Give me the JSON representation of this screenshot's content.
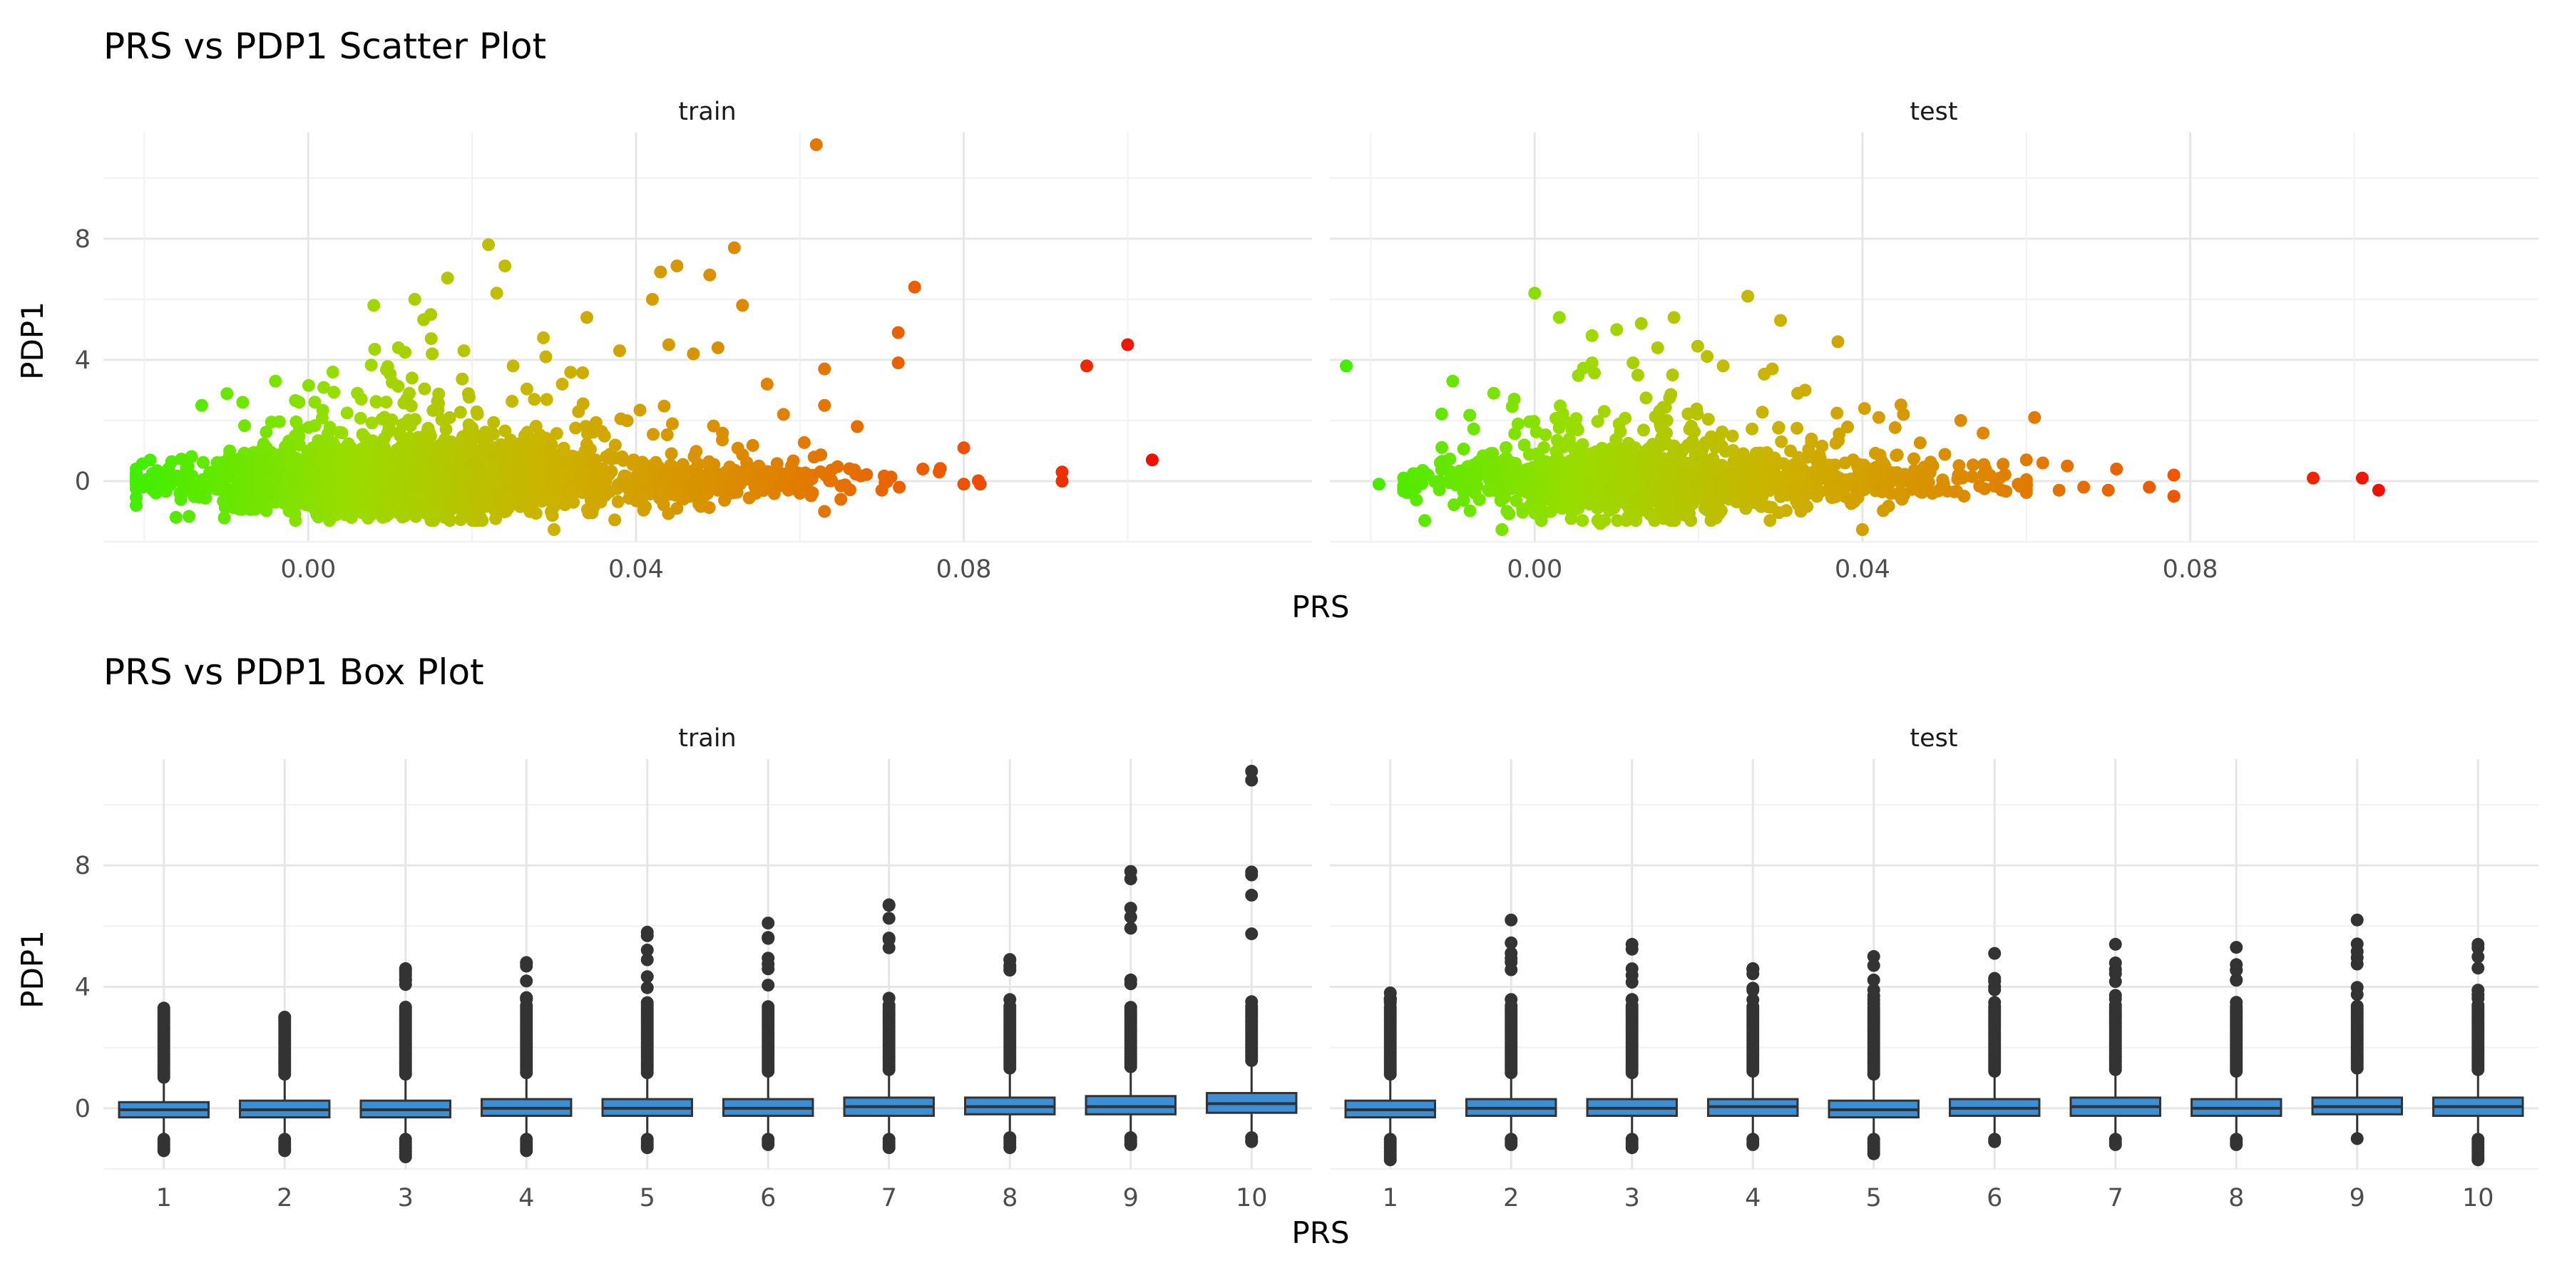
{
  "chart_data": [
    {
      "type": "scatter",
      "title": "PRS vs PDP1 Scatter Plot",
      "xlabel": "PRS",
      "ylabel": "PDP1",
      "facets": [
        "train",
        "test"
      ],
      "xlim": [
        -0.025,
        0.1225
      ],
      "ylim": [
        -2.0,
        11.5
      ],
      "x_ticks": [
        "0.00",
        "0.04",
        "0.08"
      ],
      "x_tick_values": [
        0.0,
        0.04,
        0.08
      ],
      "y_ticks": [
        "0",
        "4",
        "8"
      ],
      "y_tick_values": [
        0,
        4,
        8
      ],
      "grid": true,
      "legend": "none",
      "color_gradient": [
        "#44ee00",
        "#99dd00",
        "#ccb300",
        "#dd8800",
        "#ee5500",
        "#ee1100"
      ],
      "train_points": [
        [
          0.062,
          11.1
        ],
        [
          0.022,
          7.8
        ],
        [
          0.024,
          7.1
        ],
        [
          0.052,
          7.7
        ],
        [
          0.017,
          6.7
        ],
        [
          0.074,
          6.4
        ],
        [
          0.045,
          7.1
        ],
        [
          0.023,
          6.2
        ],
        [
          0.043,
          6.9
        ],
        [
          0.049,
          6.8
        ],
        [
          0.008,
          5.8
        ],
        [
          0.013,
          6.0
        ],
        [
          0.053,
          5.8
        ],
        [
          0.042,
          6.0
        ],
        [
          0.034,
          5.4
        ],
        [
          0.072,
          4.9
        ],
        [
          0.1,
          4.5
        ],
        [
          0.095,
          3.8
        ],
        [
          0.072,
          3.9
        ],
        [
          0.063,
          3.7
        ],
        [
          0.05,
          4.4
        ],
        [
          0.044,
          4.5
        ],
        [
          0.047,
          4.2
        ],
        [
          0.038,
          4.3
        ],
        [
          0.029,
          4.1
        ],
        [
          0.019,
          4.3
        ],
        [
          0.015,
          4.7
        ],
        [
          0.011,
          4.4
        ],
        [
          0.003,
          3.6
        ],
        [
          -0.004,
          3.3
        ],
        [
          -0.013,
          2.5
        ],
        [
          -0.008,
          2.6
        ],
        [
          0.025,
          3.8
        ],
        [
          0.031,
          3.2
        ],
        [
          0.056,
          3.2
        ],
        [
          0.063,
          2.5
        ],
        [
          0.058,
          2.2
        ],
        [
          0.067,
          1.8
        ],
        [
          0.103,
          0.7
        ],
        [
          0.092,
          0.3
        ],
        [
          0.092,
          0.0
        ],
        [
          0.08,
          1.1
        ],
        [
          0.08,
          -0.1
        ],
        [
          0.082,
          -0.1
        ],
        [
          0.077,
          0.3
        ],
        [
          0.075,
          0.4
        ],
        [
          0.07,
          -0.3
        ],
        [
          0.065,
          -0.6
        ],
        [
          0.063,
          -1.0
        ],
        [
          0.06,
          -0.4
        ],
        [
          0.055,
          0.5
        ],
        [
          0.045,
          -0.9
        ],
        [
          0.03,
          -1.6
        ],
        [
          0.012,
          2.7
        ],
        [
          0.006,
          2.9
        ]
      ],
      "test_points": [
        [
          -0.023,
          3.8
        ],
        [
          -0.019,
          -0.1
        ],
        [
          -0.01,
          3.3
        ],
        [
          -0.005,
          2.9
        ],
        [
          0.0,
          6.2
        ],
        [
          0.003,
          5.4
        ],
        [
          0.007,
          4.8
        ],
        [
          0.01,
          5.0
        ],
        [
          0.013,
          5.2
        ],
        [
          0.017,
          5.4
        ],
        [
          0.026,
          6.1
        ],
        [
          0.03,
          5.3
        ],
        [
          0.037,
          4.6
        ],
        [
          0.015,
          4.4
        ],
        [
          0.029,
          3.7
        ],
        [
          0.012,
          3.9
        ],
        [
          0.007,
          3.9
        ],
        [
          0.023,
          3.8
        ],
        [
          0.033,
          3.0
        ],
        [
          0.042,
          2.1
        ],
        [
          0.045,
          2.2
        ],
        [
          0.052,
          2.0
        ],
        [
          0.061,
          2.1
        ],
        [
          0.062,
          0.6
        ],
        [
          0.065,
          0.5
        ],
        [
          0.071,
          0.4
        ],
        [
          0.078,
          0.2
        ],
        [
          0.078,
          -0.5
        ],
        [
          0.075,
          -0.2
        ],
        [
          0.07,
          -0.3
        ],
        [
          0.067,
          -0.2
        ],
        [
          0.064,
          -0.3
        ],
        [
          0.059,
          -0.1
        ],
        [
          0.057,
          -0.3
        ],
        [
          0.095,
          0.1
        ],
        [
          0.101,
          0.1
        ],
        [
          0.103,
          -0.3
        ],
        [
          0.04,
          -1.6
        ],
        [
          0.008,
          -1.4
        ],
        [
          -0.004,
          -1.6
        ],
        [
          0.055,
          0.4
        ]
      ]
    },
    {
      "type": "box",
      "title": "PRS vs PDP1 Box Plot",
      "xlabel": "PRS",
      "ylabel": "PDP1",
      "facets": [
        "train",
        "test"
      ],
      "categories": [
        "1",
        "2",
        "3",
        "4",
        "5",
        "6",
        "7",
        "8",
        "9",
        "10"
      ],
      "ylim": [
        -2.0,
        11.5
      ],
      "y_ticks": [
        "0",
        "4",
        "8"
      ],
      "y_tick_values": [
        0,
        4,
        8
      ],
      "grid": true,
      "box_color": "#3a8fd6",
      "train": [
        {
          "q1": -0.3,
          "median": -0.05,
          "q3": 0.2,
          "whisker_low": -0.9,
          "whisker_high": 0.9,
          "max": 3.3,
          "min": -1.4
        },
        {
          "q1": -0.3,
          "median": -0.05,
          "q3": 0.25,
          "whisker_low": -0.9,
          "whisker_high": 1.0,
          "max": 3.0,
          "min": -1.4
        },
        {
          "q1": -0.3,
          "median": -0.05,
          "q3": 0.25,
          "whisker_low": -0.9,
          "whisker_high": 1.0,
          "max": 4.6,
          "min": -1.6
        },
        {
          "q1": -0.25,
          "median": 0.0,
          "q3": 0.3,
          "whisker_low": -0.9,
          "whisker_high": 1.05,
          "max": 4.8,
          "min": -1.4
        },
        {
          "q1": -0.25,
          "median": 0.0,
          "q3": 0.3,
          "whisker_low": -0.9,
          "whisker_high": 1.05,
          "max": 5.8,
          "min": -1.3
        },
        {
          "q1": -0.25,
          "median": 0.0,
          "q3": 0.3,
          "whisker_low": -0.9,
          "whisker_high": 1.1,
          "max": 6.1,
          "min": -1.2
        },
        {
          "q1": -0.25,
          "median": 0.05,
          "q3": 0.35,
          "whisker_low": -0.9,
          "whisker_high": 1.15,
          "max": 6.7,
          "min": -1.3
        },
        {
          "q1": -0.2,
          "median": 0.05,
          "q3": 0.35,
          "whisker_low": -0.85,
          "whisker_high": 1.2,
          "max": 4.9,
          "min": -1.3
        },
        {
          "q1": -0.2,
          "median": 0.05,
          "q3": 0.4,
          "whisker_low": -0.85,
          "whisker_high": 1.25,
          "max": 7.8,
          "min": -1.2
        },
        {
          "q1": -0.15,
          "median": 0.15,
          "q3": 0.5,
          "whisker_low": -0.85,
          "whisker_high": 1.45,
          "max": 11.1,
          "min": -1.1
        }
      ],
      "test": [
        {
          "q1": -0.3,
          "median": -0.05,
          "q3": 0.25,
          "whisker_low": -0.9,
          "whisker_high": 1.0,
          "max": 3.8,
          "min": -1.7
        },
        {
          "q1": -0.25,
          "median": 0.0,
          "q3": 0.3,
          "whisker_low": -0.9,
          "whisker_high": 1.05,
          "max": 6.2,
          "min": -1.2
        },
        {
          "q1": -0.25,
          "median": 0.0,
          "q3": 0.3,
          "whisker_low": -0.9,
          "whisker_high": 1.05,
          "max": 5.4,
          "min": -1.3
        },
        {
          "q1": -0.25,
          "median": 0.05,
          "q3": 0.3,
          "whisker_low": -0.9,
          "whisker_high": 1.1,
          "max": 4.6,
          "min": -1.2
        },
        {
          "q1": -0.3,
          "median": -0.05,
          "q3": 0.25,
          "whisker_low": -0.9,
          "whisker_high": 1.0,
          "max": 5.0,
          "min": -1.5
        },
        {
          "q1": -0.25,
          "median": 0.0,
          "q3": 0.3,
          "whisker_low": -0.9,
          "whisker_high": 1.1,
          "max": 5.1,
          "min": -1.1
        },
        {
          "q1": -0.25,
          "median": 0.05,
          "q3": 0.35,
          "whisker_low": -0.9,
          "whisker_high": 1.15,
          "max": 5.4,
          "min": -1.2
        },
        {
          "q1": -0.25,
          "median": 0.0,
          "q3": 0.3,
          "whisker_low": -0.9,
          "whisker_high": 1.1,
          "max": 5.3,
          "min": -1.2
        },
        {
          "q1": -0.2,
          "median": 0.05,
          "q3": 0.35,
          "whisker_low": -1.0,
          "whisker_high": 1.2,
          "max": 6.2,
          "min": -1.0
        },
        {
          "q1": -0.25,
          "median": 0.05,
          "q3": 0.35,
          "whisker_low": -0.9,
          "whisker_high": 1.15,
          "max": 5.4,
          "min": -1.7
        }
      ]
    }
  ]
}
